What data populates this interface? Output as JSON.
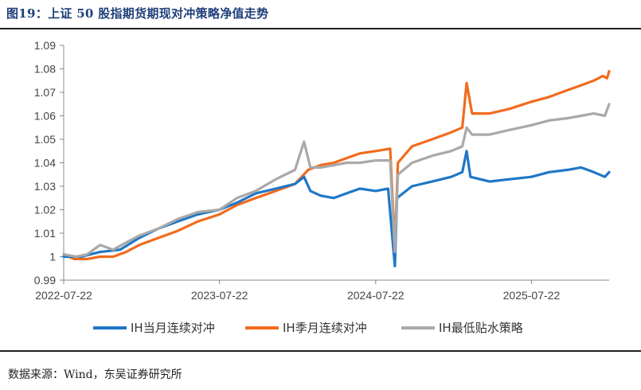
{
  "header": {
    "title": "图19：上证 50 股指期货期现对冲策略净值走势"
  },
  "footer": {
    "source": "数据来源：Wind，东吴证券研究所"
  },
  "chart_data": {
    "type": "line",
    "title": "",
    "xlabel": "",
    "ylabel": "",
    "ylim": [
      0.99,
      1.09
    ],
    "yticks": [
      "0.99",
      "1",
      "1.01",
      "1.02",
      "1.03",
      "1.04",
      "1.05",
      "1.06",
      "1.07",
      "1.08",
      "1.09"
    ],
    "xticks": [
      "2022-07-22",
      "2023-07-22",
      "2024-07-22",
      "2025-07-22"
    ],
    "xrange": [
      "2022-07-22",
      "2026-01-20"
    ],
    "grid": false,
    "legend_position": "bottom",
    "series": [
      {
        "name": "IH当月连续对冲",
        "color": "#1f77c6",
        "points": [
          [
            "2022-07-22",
            1.0
          ],
          [
            "2022-09-01",
            1.0
          ],
          [
            "2022-10-15",
            1.002
          ],
          [
            "2022-12-01",
            1.003
          ],
          [
            "2023-01-15",
            1.008
          ],
          [
            "2023-03-01",
            1.012
          ],
          [
            "2023-04-15",
            1.015
          ],
          [
            "2023-06-01",
            1.018
          ],
          [
            "2023-07-22",
            1.02
          ],
          [
            "2023-09-01",
            1.023
          ],
          [
            "2023-10-15",
            1.027
          ],
          [
            "2023-12-01",
            1.029
          ],
          [
            "2024-01-15",
            1.031
          ],
          [
            "2024-02-05",
            1.034
          ],
          [
            "2024-02-20",
            1.028
          ],
          [
            "2024-03-15",
            1.026
          ],
          [
            "2024-04-15",
            1.025
          ],
          [
            "2024-05-15",
            1.027
          ],
          [
            "2024-06-15",
            1.029
          ],
          [
            "2024-07-22",
            1.028
          ],
          [
            "2024-08-20",
            1.029
          ],
          [
            "2024-09-05",
            0.996
          ],
          [
            "2024-09-10",
            1.025
          ],
          [
            "2024-10-15",
            1.03
          ],
          [
            "2024-12-01",
            1.032
          ],
          [
            "2025-01-15",
            1.034
          ],
          [
            "2025-02-10",
            1.036
          ],
          [
            "2025-02-20",
            1.045
          ],
          [
            "2025-03-01",
            1.034
          ],
          [
            "2025-04-15",
            1.032
          ],
          [
            "2025-06-01",
            1.033
          ],
          [
            "2025-07-22",
            1.034
          ],
          [
            "2025-09-01",
            1.036
          ],
          [
            "2025-10-15",
            1.037
          ],
          [
            "2025-11-15",
            1.038
          ],
          [
            "2025-12-15",
            1.036
          ],
          [
            "2026-01-10",
            1.034
          ],
          [
            "2026-01-20",
            1.036
          ]
        ]
      },
      {
        "name": "IH季月连续对冲",
        "color": "#f26b1d",
        "points": [
          [
            "2022-07-22",
            1.001
          ],
          [
            "2022-08-15",
            0.999
          ],
          [
            "2022-09-15",
            0.999
          ],
          [
            "2022-10-15",
            1.0
          ],
          [
            "2022-11-15",
            1.0
          ],
          [
            "2022-12-15",
            1.002
          ],
          [
            "2023-01-15",
            1.005
          ],
          [
            "2023-03-01",
            1.008
          ],
          [
            "2023-04-15",
            1.011
          ],
          [
            "2023-06-01",
            1.015
          ],
          [
            "2023-07-22",
            1.018
          ],
          [
            "2023-09-01",
            1.022
          ],
          [
            "2023-10-15",
            1.025
          ],
          [
            "2023-12-01",
            1.028
          ],
          [
            "2024-01-15",
            1.031
          ],
          [
            "2024-02-15",
            1.037
          ],
          [
            "2024-03-15",
            1.039
          ],
          [
            "2024-04-15",
            1.04
          ],
          [
            "2024-05-15",
            1.042
          ],
          [
            "2024-06-15",
            1.044
          ],
          [
            "2024-07-22",
            1.045
          ],
          [
            "2024-08-25",
            1.046
          ],
          [
            "2024-09-05",
            1.004
          ],
          [
            "2024-09-12",
            1.04
          ],
          [
            "2024-10-15",
            1.047
          ],
          [
            "2024-12-01",
            1.05
          ],
          [
            "2025-01-15",
            1.053
          ],
          [
            "2025-02-10",
            1.055
          ],
          [
            "2025-02-20",
            1.074
          ],
          [
            "2025-03-05",
            1.061
          ],
          [
            "2025-04-15",
            1.061
          ],
          [
            "2025-06-01",
            1.063
          ],
          [
            "2025-07-22",
            1.066
          ],
          [
            "2025-09-01",
            1.068
          ],
          [
            "2025-10-15",
            1.071
          ],
          [
            "2025-11-15",
            1.073
          ],
          [
            "2025-12-15",
            1.075
          ],
          [
            "2026-01-05",
            1.077
          ],
          [
            "2026-01-15",
            1.076
          ],
          [
            "2026-01-20",
            1.079
          ]
        ]
      },
      {
        "name": "IH最低贴水策略",
        "color": "#a9a9a9",
        "points": [
          [
            "2022-07-22",
            1.001
          ],
          [
            "2022-08-20",
            1.0
          ],
          [
            "2022-09-15",
            1.001
          ],
          [
            "2022-10-15",
            1.005
          ],
          [
            "2022-11-15",
            1.003
          ],
          [
            "2022-12-15",
            1.006
          ],
          [
            "2023-01-15",
            1.009
          ],
          [
            "2023-03-01",
            1.012
          ],
          [
            "2023-04-15",
            1.016
          ],
          [
            "2023-06-01",
            1.019
          ],
          [
            "2023-07-22",
            1.02
          ],
          [
            "2023-09-01",
            1.025
          ],
          [
            "2023-10-15",
            1.028
          ],
          [
            "2023-12-01",
            1.033
          ],
          [
            "2024-01-15",
            1.037
          ],
          [
            "2024-02-05",
            1.049
          ],
          [
            "2024-02-20",
            1.038
          ],
          [
            "2024-03-15",
            1.038
          ],
          [
            "2024-04-15",
            1.039
          ],
          [
            "2024-05-15",
            1.04
          ],
          [
            "2024-06-15",
            1.04
          ],
          [
            "2024-07-22",
            1.041
          ],
          [
            "2024-08-25",
            1.041
          ],
          [
            "2024-09-05",
            1.002
          ],
          [
            "2024-09-12",
            1.035
          ],
          [
            "2024-10-15",
            1.04
          ],
          [
            "2024-12-01",
            1.043
          ],
          [
            "2025-01-15",
            1.045
          ],
          [
            "2025-02-10",
            1.047
          ],
          [
            "2025-02-20",
            1.055
          ],
          [
            "2025-03-05",
            1.052
          ],
          [
            "2025-04-15",
            1.052
          ],
          [
            "2025-06-01",
            1.054
          ],
          [
            "2025-07-22",
            1.056
          ],
          [
            "2025-09-01",
            1.058
          ],
          [
            "2025-10-15",
            1.059
          ],
          [
            "2025-11-15",
            1.06
          ],
          [
            "2025-12-15",
            1.061
          ],
          [
            "2026-01-10",
            1.06
          ],
          [
            "2026-01-20",
            1.065
          ]
        ]
      }
    ]
  }
}
